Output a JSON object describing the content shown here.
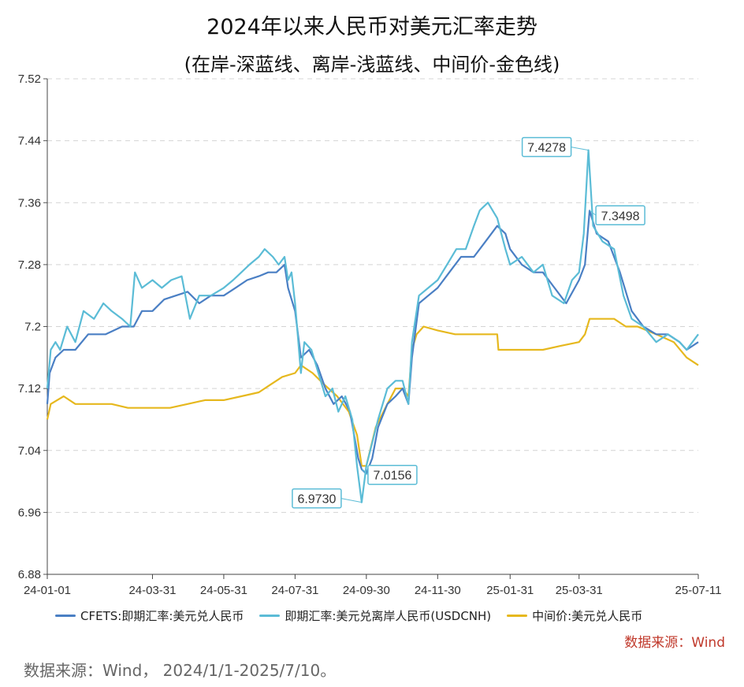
{
  "title": "2024年以来人民币对美元汇率走势",
  "subtitle": "(在岸-深蓝线、离岸-浅蓝线、中间价-金色线)",
  "legend": [
    {
      "label": "CFETS:即期汇率:美元兑人民币",
      "color": "#4a7fc4"
    },
    {
      "label": "即期汇率:美元兑离岸人民币(USDCNH)",
      "color": "#5bbcd6"
    },
    {
      "label": "中间价:美元兑人民币",
      "color": "#e6b81e"
    }
  ],
  "source_label": "数据来源：Wind",
  "footnote": "数据来源：Wind， 2024/1/1-2025/7/10。",
  "chart_data": {
    "type": "line",
    "ylim": [
      6.88,
      7.52
    ],
    "yticks": [
      "6.88",
      "6.96",
      "7.04",
      "7.12",
      "7.2",
      "7.28",
      "7.36",
      "7.44",
      "7.52"
    ],
    "x_tick_labels": [
      "24-01-01",
      "24-03-31",
      "24-05-31",
      "24-07-31",
      "24-09-30",
      "24-11-30",
      "25-01-31",
      "25-03-31",
      "25-07-11"
    ],
    "x_tick_dates": [
      "2024-01-01",
      "2024-03-31",
      "2024-05-31",
      "2024-07-31",
      "2024-09-30",
      "2024-11-30",
      "2025-01-31",
      "2025-03-31",
      "2025-07-11"
    ],
    "x_range": [
      "2024-01-01",
      "2025-07-11"
    ],
    "grid": "horizontal-dashed",
    "legend_position": "bottom",
    "series": [
      {
        "name": "CFETS:即期汇率:美元兑人民币",
        "color": "#4a7fc4",
        "points": [
          [
            "2024-01-01",
            7.1
          ],
          [
            "2024-01-03",
            7.14
          ],
          [
            "2024-01-08",
            7.16
          ],
          [
            "2024-01-15",
            7.17
          ],
          [
            "2024-01-25",
            7.17
          ],
          [
            "2024-02-05",
            7.19
          ],
          [
            "2024-02-20",
            7.19
          ],
          [
            "2024-03-05",
            7.2
          ],
          [
            "2024-03-15",
            7.2
          ],
          [
            "2024-03-22",
            7.22
          ],
          [
            "2024-03-31",
            7.22
          ],
          [
            "2024-04-10",
            7.235
          ],
          [
            "2024-04-20",
            7.24
          ],
          [
            "2024-04-30",
            7.245
          ],
          [
            "2024-05-10",
            7.23
          ],
          [
            "2024-05-20",
            7.24
          ],
          [
            "2024-05-31",
            7.24
          ],
          [
            "2024-06-10",
            7.25
          ],
          [
            "2024-06-20",
            7.26
          ],
          [
            "2024-06-30",
            7.265
          ],
          [
            "2024-07-08",
            7.27
          ],
          [
            "2024-07-15",
            7.27
          ],
          [
            "2024-07-22",
            7.28
          ],
          [
            "2024-07-25",
            7.25
          ],
          [
            "2024-07-31",
            7.22
          ],
          [
            "2024-08-05",
            7.16
          ],
          [
            "2024-08-12",
            7.17
          ],
          [
            "2024-08-19",
            7.15
          ],
          [
            "2024-08-26",
            7.12
          ],
          [
            "2024-09-02",
            7.1
          ],
          [
            "2024-09-09",
            7.11
          ],
          [
            "2024-09-16",
            7.09
          ],
          [
            "2024-09-23",
            7.03
          ],
          [
            "2024-09-26",
            7.0156
          ],
          [
            "2024-09-30",
            7.01
          ],
          [
            "2024-10-05",
            7.03
          ],
          [
            "2024-10-10",
            7.07
          ],
          [
            "2024-10-18",
            7.1
          ],
          [
            "2024-10-25",
            7.11
          ],
          [
            "2024-10-31",
            7.12
          ],
          [
            "2024-11-05",
            7.1
          ],
          [
            "2024-11-08",
            7.16
          ],
          [
            "2024-11-14",
            7.23
          ],
          [
            "2024-11-22",
            7.24
          ],
          [
            "2024-11-30",
            7.25
          ],
          [
            "2024-12-10",
            7.27
          ],
          [
            "2024-12-20",
            7.29
          ],
          [
            "2024-12-31",
            7.29
          ],
          [
            "2025-01-10",
            7.31
          ],
          [
            "2025-01-20",
            7.33
          ],
          [
            "2025-01-27",
            7.32
          ],
          [
            "2025-01-31",
            7.3
          ],
          [
            "2025-02-10",
            7.28
          ],
          [
            "2025-02-20",
            7.27
          ],
          [
            "2025-02-28",
            7.27
          ],
          [
            "2025-03-10",
            7.25
          ],
          [
            "2025-03-20",
            7.23
          ],
          [
            "2025-03-31",
            7.26
          ],
          [
            "2025-04-05",
            7.28
          ],
          [
            "2025-04-09",
            7.3498
          ],
          [
            "2025-04-15",
            7.32
          ],
          [
            "2025-04-25",
            7.31
          ],
          [
            "2025-05-05",
            7.27
          ],
          [
            "2025-05-15",
            7.22
          ],
          [
            "2025-05-25",
            7.2
          ],
          [
            "2025-06-05",
            7.19
          ],
          [
            "2025-06-15",
            7.19
          ],
          [
            "2025-06-25",
            7.18
          ],
          [
            "2025-07-01",
            7.17
          ],
          [
            "2025-07-11",
            7.18
          ]
        ]
      },
      {
        "name": "即期汇率:美元兑离岸人民币(USDCNH)",
        "color": "#5bbcd6",
        "points": [
          [
            "2024-01-01",
            7.12
          ],
          [
            "2024-01-04",
            7.17
          ],
          [
            "2024-01-08",
            7.18
          ],
          [
            "2024-01-12",
            7.17
          ],
          [
            "2024-01-18",
            7.2
          ],
          [
            "2024-01-25",
            7.18
          ],
          [
            "2024-02-01",
            7.22
          ],
          [
            "2024-02-10",
            7.21
          ],
          [
            "2024-02-18",
            7.23
          ],
          [
            "2024-02-25",
            7.22
          ],
          [
            "2024-03-05",
            7.21
          ],
          [
            "2024-03-12",
            7.2
          ],
          [
            "2024-03-16",
            7.27
          ],
          [
            "2024-03-22",
            7.25
          ],
          [
            "2024-03-31",
            7.26
          ],
          [
            "2024-04-08",
            7.25
          ],
          [
            "2024-04-16",
            7.26
          ],
          [
            "2024-04-25",
            7.265
          ],
          [
            "2024-05-02",
            7.21
          ],
          [
            "2024-05-10",
            7.24
          ],
          [
            "2024-05-20",
            7.24
          ],
          [
            "2024-05-31",
            7.25
          ],
          [
            "2024-06-08",
            7.26
          ],
          [
            "2024-06-15",
            7.27
          ],
          [
            "2024-06-22",
            7.28
          ],
          [
            "2024-06-30",
            7.29
          ],
          [
            "2024-07-05",
            7.3
          ],
          [
            "2024-07-12",
            7.29
          ],
          [
            "2024-07-17",
            7.28
          ],
          [
            "2024-07-22",
            7.29
          ],
          [
            "2024-07-25",
            7.26
          ],
          [
            "2024-07-28",
            7.27
          ],
          [
            "2024-07-31",
            7.23
          ],
          [
            "2024-08-05",
            7.14
          ],
          [
            "2024-08-08",
            7.18
          ],
          [
            "2024-08-14",
            7.17
          ],
          [
            "2024-08-20",
            7.14
          ],
          [
            "2024-08-26",
            7.11
          ],
          [
            "2024-09-01",
            7.12
          ],
          [
            "2024-09-06",
            7.09
          ],
          [
            "2024-09-12",
            7.11
          ],
          [
            "2024-09-18",
            7.08
          ],
          [
            "2024-09-22",
            7.02
          ],
          [
            "2024-09-26",
            6.973
          ],
          [
            "2024-09-30",
            7.02
          ],
          [
            "2024-10-05",
            7.05
          ],
          [
            "2024-10-10",
            7.08
          ],
          [
            "2024-10-18",
            7.12
          ],
          [
            "2024-10-25",
            7.13
          ],
          [
            "2024-10-31",
            7.13
          ],
          [
            "2024-11-05",
            7.1
          ],
          [
            "2024-11-08",
            7.18
          ],
          [
            "2024-11-14",
            7.24
          ],
          [
            "2024-11-22",
            7.25
          ],
          [
            "2024-11-30",
            7.26
          ],
          [
            "2024-12-08",
            7.28
          ],
          [
            "2024-12-16",
            7.3
          ],
          [
            "2024-12-24",
            7.3
          ],
          [
            "2024-12-31",
            7.33
          ],
          [
            "2025-01-05",
            7.35
          ],
          [
            "2025-01-12",
            7.36
          ],
          [
            "2025-01-20",
            7.34
          ],
          [
            "2025-01-27",
            7.3
          ],
          [
            "2025-01-31",
            7.28
          ],
          [
            "2025-02-10",
            7.29
          ],
          [
            "2025-02-20",
            7.27
          ],
          [
            "2025-02-28",
            7.28
          ],
          [
            "2025-03-08",
            7.24
          ],
          [
            "2025-03-18",
            7.23
          ],
          [
            "2025-03-25",
            7.26
          ],
          [
            "2025-03-31",
            7.27
          ],
          [
            "2025-04-04",
            7.32
          ],
          [
            "2025-04-08",
            7.4278
          ],
          [
            "2025-04-12",
            7.33
          ],
          [
            "2025-04-20",
            7.31
          ],
          [
            "2025-04-30",
            7.3
          ],
          [
            "2025-05-08",
            7.24
          ],
          [
            "2025-05-15",
            7.21
          ],
          [
            "2025-05-25",
            7.2
          ],
          [
            "2025-06-05",
            7.18
          ],
          [
            "2025-06-15",
            7.19
          ],
          [
            "2025-06-25",
            7.18
          ],
          [
            "2025-07-01",
            7.17
          ],
          [
            "2025-07-11",
            7.19
          ]
        ]
      },
      {
        "name": "中间价:美元兑人民币",
        "color": "#e6b81e",
        "points": [
          [
            "2024-01-01",
            7.08
          ],
          [
            "2024-01-04",
            7.1
          ],
          [
            "2024-01-15",
            7.11
          ],
          [
            "2024-01-25",
            7.1
          ],
          [
            "2024-02-10",
            7.1
          ],
          [
            "2024-02-25",
            7.1
          ],
          [
            "2024-03-10",
            7.095
          ],
          [
            "2024-03-25",
            7.095
          ],
          [
            "2024-03-31",
            7.095
          ],
          [
            "2024-04-15",
            7.095
          ],
          [
            "2024-04-30",
            7.1
          ],
          [
            "2024-05-15",
            7.105
          ],
          [
            "2024-05-31",
            7.105
          ],
          [
            "2024-06-15",
            7.11
          ],
          [
            "2024-06-30",
            7.115
          ],
          [
            "2024-07-10",
            7.125
          ],
          [
            "2024-07-20",
            7.135
          ],
          [
            "2024-07-31",
            7.14
          ],
          [
            "2024-08-05",
            7.15
          ],
          [
            "2024-08-15",
            7.14
          ],
          [
            "2024-08-25",
            7.125
          ],
          [
            "2024-09-05",
            7.11
          ],
          [
            "2024-09-15",
            7.09
          ],
          [
            "2024-09-22",
            7.06
          ],
          [
            "2024-09-26",
            7.02
          ],
          [
            "2024-09-30",
            7.02
          ],
          [
            "2024-10-08",
            7.07
          ],
          [
            "2024-10-18",
            7.1
          ],
          [
            "2024-10-25",
            7.12
          ],
          [
            "2024-10-31",
            7.12
          ],
          [
            "2024-11-05",
            7.11
          ],
          [
            "2024-11-08",
            7.17
          ],
          [
            "2024-11-12",
            7.19
          ],
          [
            "2024-11-18",
            7.2
          ],
          [
            "2024-11-30",
            7.195
          ],
          [
            "2024-12-15",
            7.19
          ],
          [
            "2024-12-31",
            7.19
          ],
          [
            "2025-01-15",
            7.19
          ],
          [
            "2025-01-20",
            7.19
          ],
          [
            "2025-01-21",
            7.17
          ],
          [
            "2025-01-31",
            7.17
          ],
          [
            "2025-02-15",
            7.17
          ],
          [
            "2025-02-28",
            7.17
          ],
          [
            "2025-03-15",
            7.175
          ],
          [
            "2025-03-31",
            7.18
          ],
          [
            "2025-04-05",
            7.19
          ],
          [
            "2025-04-09",
            7.21
          ],
          [
            "2025-04-20",
            7.21
          ],
          [
            "2025-04-30",
            7.21
          ],
          [
            "2025-05-10",
            7.2
          ],
          [
            "2025-05-20",
            7.2
          ],
          [
            "2025-06-05",
            7.19
          ],
          [
            "2025-06-20",
            7.18
          ],
          [
            "2025-07-01",
            7.16
          ],
          [
            "2025-07-11",
            7.15
          ]
        ]
      }
    ],
    "annotations": [
      {
        "label": "7.4278",
        "date": "2025-04-08",
        "value": 7.4278,
        "series": "即期汇率:美元兑离岸人民币(USDCNH)"
      },
      {
        "label": "7.3498",
        "date": "2025-04-09",
        "value": 7.3498,
        "series": "CFETS:即期汇率:美元兑人民币"
      },
      {
        "label": "7.0156",
        "date": "2024-09-26",
        "value": 7.0156,
        "series": "CFETS:即期汇率:美元兑人民币"
      },
      {
        "label": "6.9730",
        "date": "2024-09-26",
        "value": 6.973,
        "series": "即期汇率:美元兑离岸人民币(USDCNH)"
      }
    ]
  }
}
